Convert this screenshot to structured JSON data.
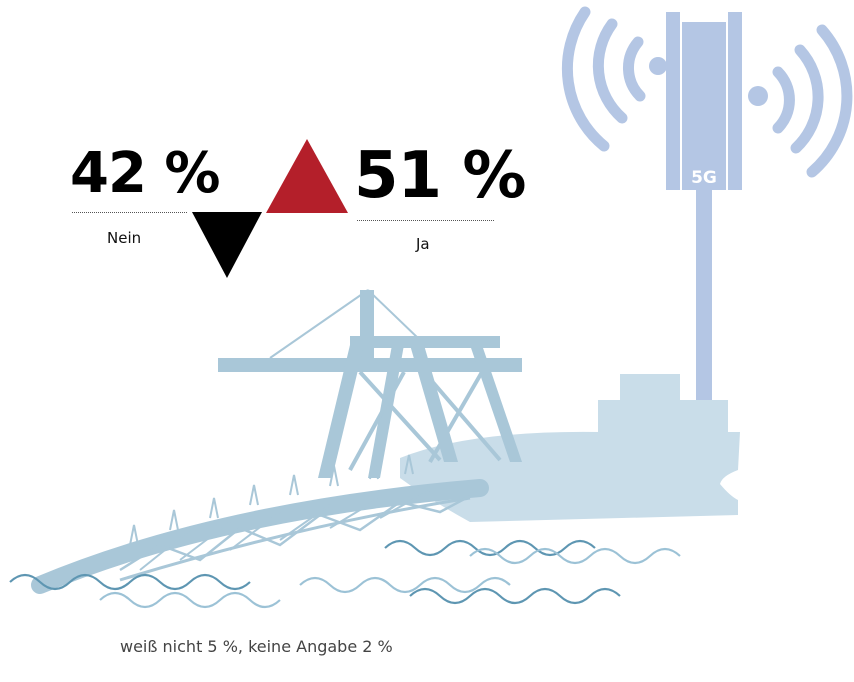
{
  "results": {
    "no": {
      "value": "42 %",
      "label": "Nein",
      "direction": "down",
      "color": "#000000"
    },
    "yes": {
      "value": "51 %",
      "label": "Ja",
      "direction": "up",
      "color": "#b41f2a"
    }
  },
  "antenna": {
    "label": "5G"
  },
  "footnote": "weiß nicht 5 %, keine Angabe 2 %",
  "colors": {
    "antenna": "#b4c6e4",
    "ship": "#c9dde9",
    "crane": "#a9c7d8",
    "waves_dark": "#5e96b2",
    "waves_light": "#9cc2d6",
    "up_triangle": "#b41f2a",
    "down_triangle": "#000000"
  },
  "icons": [
    "antenna-5g-icon",
    "signal-waves-icon",
    "ship-icon",
    "harbor-crane-icon",
    "sea-waves-icon",
    "arrow-up-triangle-icon",
    "arrow-down-triangle-icon"
  ]
}
